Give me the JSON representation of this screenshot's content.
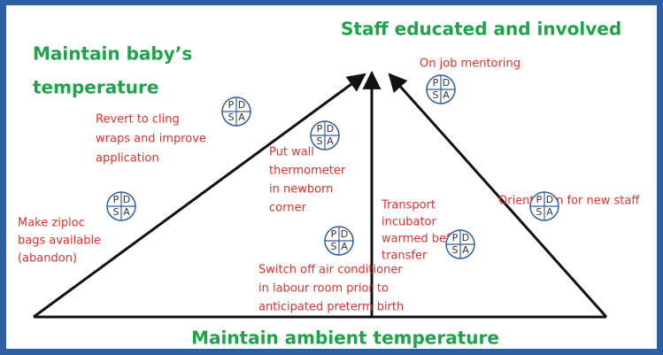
{
  "titles": {
    "top": "Staff educated and involved",
    "left": [
      "Maintain baby’s",
      "temperature"
    ],
    "bottom": "Maintain ambient temperature"
  },
  "pdsa": [
    "P",
    "D",
    "S",
    "A"
  ],
  "items": [
    {
      "lines": [
        "On job mentoring"
      ]
    },
    {
      "lines": [
        "Revert to cling",
        "wraps and improve",
        "application"
      ]
    },
    {
      "lines": [
        "Put wall",
        "thermometer",
        "in newborn",
        "corner"
      ]
    },
    {
      "lines": [
        "Transport",
        "incubator",
        "warmed before",
        "transfer"
      ]
    },
    {
      "lines": [
        "Orientation for new staff"
      ]
    },
    {
      "lines": [
        "Make ziploc",
        "bags available",
        "(abandon)"
      ]
    },
    {
      "lines": [
        "Switch off air conditioner",
        "in labour room prior to",
        "anticipated preterm birth"
      ]
    }
  ]
}
